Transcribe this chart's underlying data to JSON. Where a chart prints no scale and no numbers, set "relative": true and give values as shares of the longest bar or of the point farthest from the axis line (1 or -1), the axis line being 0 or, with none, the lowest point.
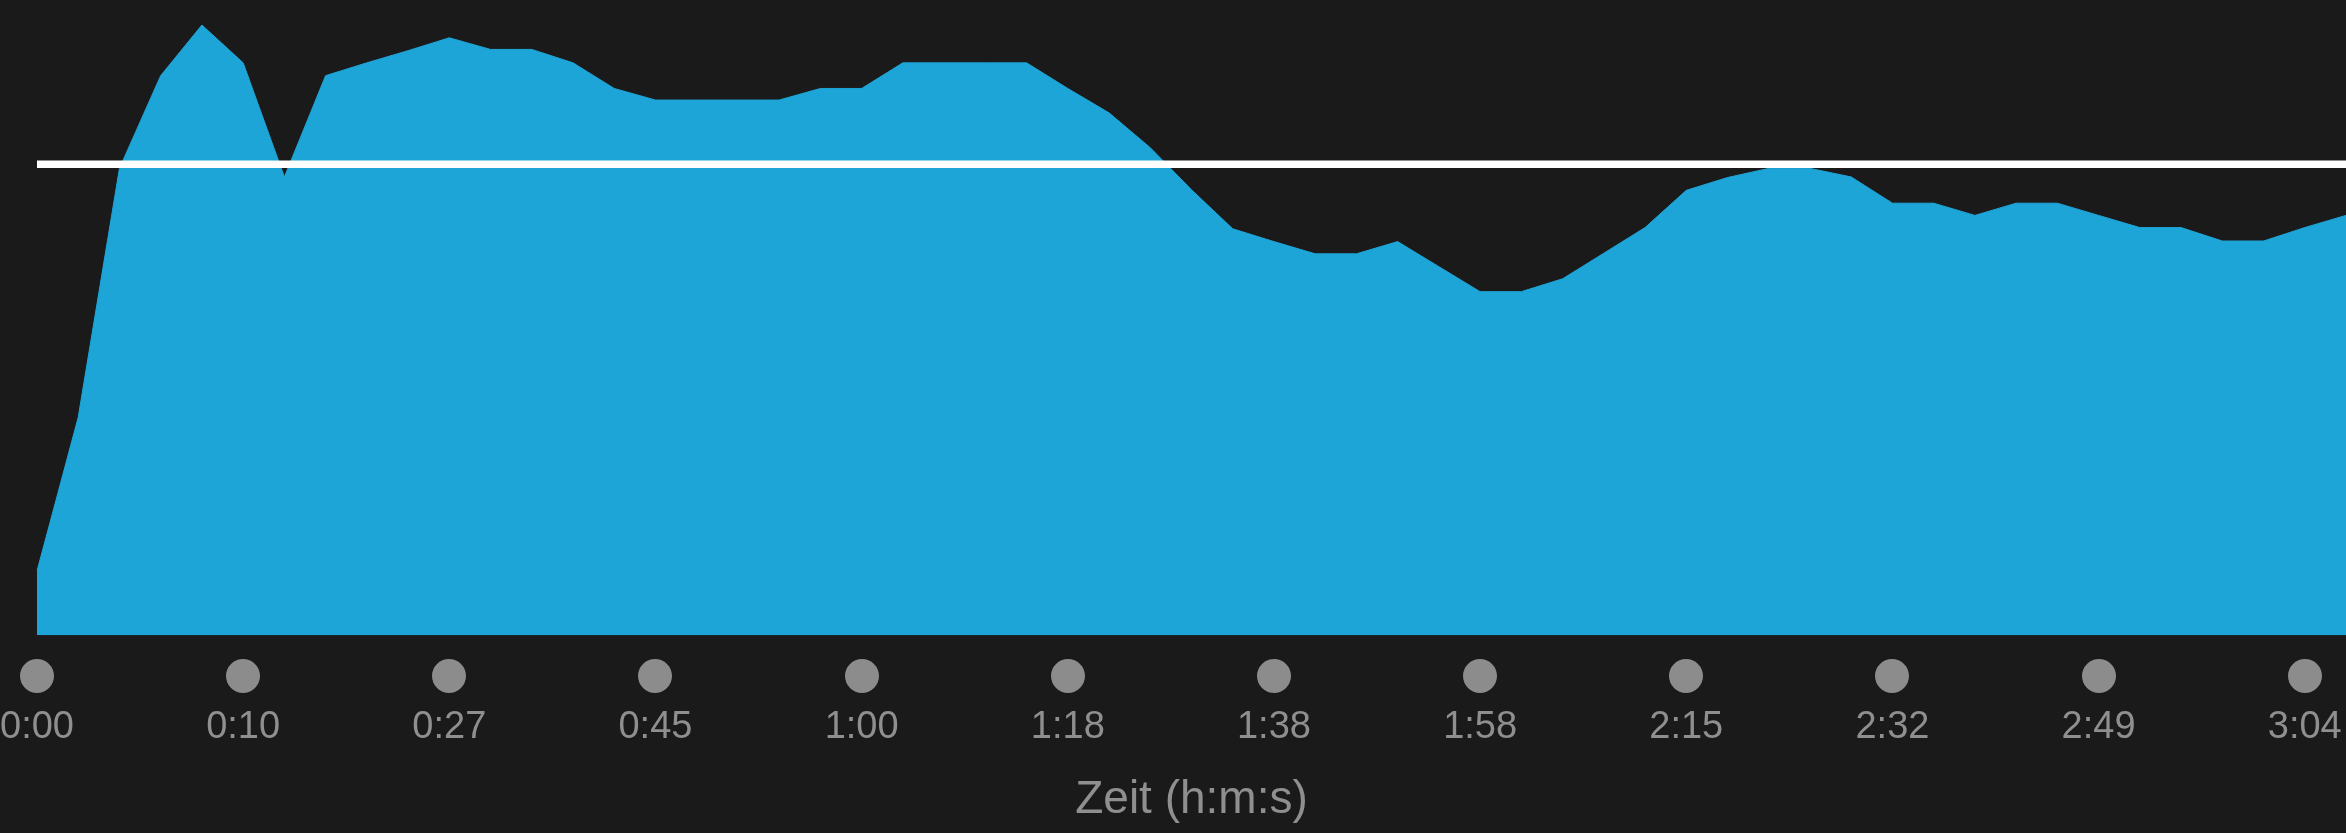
{
  "chart_data": {
    "type": "area",
    "xlabel": "Zeit (h:m:s)",
    "relative": true,
    "color": "#1ea5d8",
    "tick_labels": "x",
    "categories": [
      "0:00",
      null,
      null,
      null,
      null,
      "0:10",
      null,
      null,
      null,
      null,
      "0:27",
      null,
      null,
      null,
      null,
      "0:45",
      null,
      null,
      null,
      null,
      "1:00",
      null,
      null,
      null,
      null,
      "1:18",
      null,
      null,
      null,
      null,
      "1:38",
      null,
      null,
      null,
      null,
      "1:58",
      null,
      null,
      null,
      null,
      "2:15",
      null,
      null,
      null,
      null,
      "2:32",
      null,
      null,
      null,
      null,
      "2:49",
      null,
      null,
      null,
      null,
      "3:04",
      null
    ],
    "values": [
      0.105,
      0.357,
      0.765,
      0.917,
      1.0,
      0.938,
      0.751,
      0.917,
      0.938,
      0.958,
      0.979,
      0.96,
      0.96,
      0.938,
      0.896,
      0.877,
      0.877,
      0.877,
      0.877,
      0.896,
      0.896,
      0.938,
      0.938,
      0.938,
      0.938,
      0.896,
      0.856,
      0.799,
      0.73,
      0.666,
      0.645,
      0.625,
      0.625,
      0.645,
      0.604,
      0.563,
      0.563,
      0.584,
      0.626,
      0.668,
      0.729,
      0.75,
      0.765,
      0.765,
      0.751,
      0.708,
      0.708,
      0.688,
      0.708,
      0.708,
      0.688,
      0.668,
      0.668,
      0.646,
      0.646,
      0.668,
      0.688
    ],
    "ref_lines": [
      {
        "axis": "y",
        "value": 0.772,
        "color": "#ffffff"
      }
    ]
  }
}
